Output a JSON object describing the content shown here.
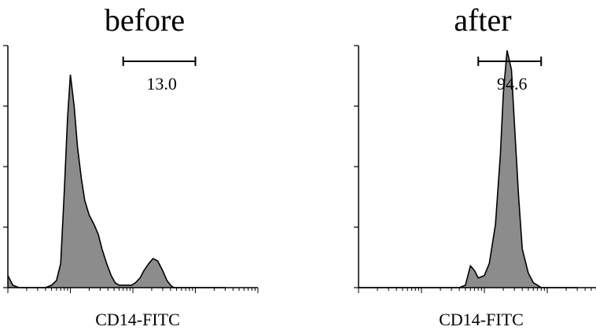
{
  "chart_data": [
    {
      "type": "area",
      "title": "before",
      "xlabel": "CD14-FITC",
      "ylabel": "",
      "x_scale": "log",
      "xlim": [
        10,
        100000
      ],
      "ylim": [
        0,
        100
      ],
      "grid": false,
      "fill_color": "#8c8c8c",
      "line_color": "#000000",
      "series": [
        {
          "x": [
            10,
            12,
            15,
            20,
            30,
            40,
            50,
            60,
            70,
            80,
            90,
            100,
            115,
            130,
            150,
            170,
            200,
            240,
            280,
            320,
            380,
            450,
            520,
            600,
            700,
            800,
            950,
            1100,
            1300,
            1500,
            1800,
            2100,
            2500,
            3000,
            3500,
            4000,
            4500,
            5000,
            6000,
            7000,
            8500,
            10000,
            12000,
            15000,
            20000,
            30000
          ],
          "y": [
            5,
            1,
            0,
            0,
            0,
            0,
            1,
            3,
            10,
            40,
            70,
            88,
            75,
            58,
            45,
            36,
            30,
            26,
            22,
            16,
            10,
            5,
            2,
            1,
            1,
            1,
            1,
            2,
            4,
            7,
            10,
            12,
            11,
            7,
            3,
            1,
            0,
            0,
            0,
            0,
            0,
            0,
            0,
            0,
            0,
            0
          ]
        }
      ],
      "gate": {
        "from": 700,
        "to": 10000,
        "label": "13.0"
      }
    },
    {
      "type": "area",
      "title": "after",
      "xlabel": "CD14-FITC",
      "ylabel": "",
      "x_scale": "log",
      "xlim": [
        10,
        100000
      ],
      "ylim": [
        0,
        100
      ],
      "grid": false,
      "fill_color": "#8c8c8c",
      "line_color": "#000000",
      "series": [
        {
          "x": [
            10,
            50,
            100,
            200,
            300,
            400,
            500,
            600,
            700,
            800,
            1000,
            1200,
            1500,
            1800,
            2000,
            2300,
            2700,
            3000,
            3500,
            4000,
            5000,
            6000,
            7000,
            8000,
            10000,
            15000,
            20000,
            30000
          ],
          "y": [
            0,
            0,
            0,
            0,
            0,
            0,
            1,
            9,
            7,
            4,
            5,
            10,
            26,
            55,
            80,
            98,
            90,
            68,
            38,
            16,
            6,
            2,
            1,
            0,
            0,
            0,
            0,
            0
          ]
        }
      ],
      "gate": {
        "from": 800,
        "to": 8000,
        "label": "94.6"
      }
    }
  ]
}
